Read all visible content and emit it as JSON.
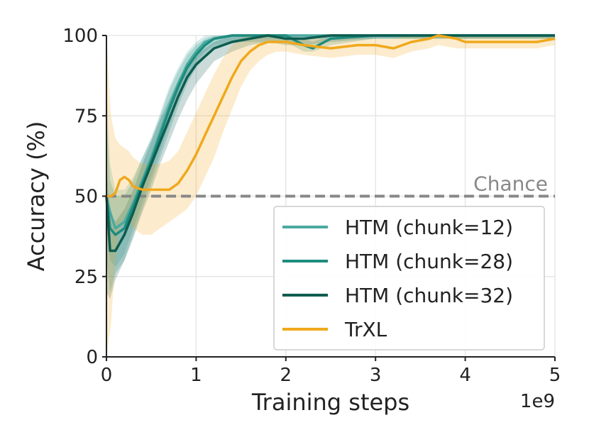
{
  "chart_data": {
    "type": "line",
    "title": "",
    "xlabel": "Training steps",
    "ylabel": "Accuracy (%)",
    "x_scale_label": "1e9",
    "xlim": [
      0,
      5
    ],
    "ylim": [
      0,
      100
    ],
    "x_ticks": [
      "0",
      "1",
      "2",
      "3",
      "4",
      "5"
    ],
    "y_ticks": [
      "0",
      "25",
      "50",
      "75",
      "100"
    ],
    "grid": true,
    "legend_position": "lower-right",
    "reference_line": {
      "label": "Chance",
      "y": 50,
      "style": "dashed",
      "color": "#888888"
    },
    "series": [
      {
        "name": "HTM (chunk=12)",
        "color": "#4aaaa0",
        "x": [
          0.0,
          0.04,
          0.1,
          0.2,
          0.3,
          0.4,
          0.5,
          0.6,
          0.7,
          0.8,
          0.9,
          1.0,
          1.1,
          1.2,
          1.4,
          1.6,
          1.8,
          2.0,
          2.5,
          3.0,
          3.5,
          4.0,
          4.5,
          5.0
        ],
        "y": [
          50,
          45,
          40,
          42,
          48,
          55,
          62,
          70,
          78,
          85,
          91,
          95,
          98,
          99,
          100,
          100,
          100,
          100,
          100,
          100,
          100,
          100,
          100,
          100
        ],
        "lower": [
          40,
          30,
          28,
          32,
          40,
          48,
          56,
          64,
          72,
          80,
          87,
          92,
          95,
          97,
          98,
          99,
          99,
          99,
          99,
          99,
          99,
          99,
          99,
          99
        ],
        "upper": [
          85,
          60,
          52,
          52,
          56,
          62,
          68,
          76,
          84,
          90,
          95,
          98,
          100,
          100,
          100,
          100,
          100,
          100,
          100,
          100,
          100,
          100,
          100,
          100
        ]
      },
      {
        "name": "HTM (chunk=28)",
        "color": "#1e8c7e",
        "x": [
          0.0,
          0.04,
          0.1,
          0.2,
          0.3,
          0.4,
          0.5,
          0.6,
          0.7,
          0.8,
          0.9,
          1.0,
          1.1,
          1.2,
          1.4,
          1.6,
          1.8,
          2.0,
          2.2,
          2.3,
          2.5,
          3.0,
          3.5,
          4.0,
          4.5,
          5.0
        ],
        "y": [
          50,
          40,
          38,
          40,
          47,
          54,
          61,
          69,
          77,
          84,
          90,
          94,
          97,
          99,
          100,
          100,
          100,
          100,
          97,
          96,
          99,
          100,
          100,
          100,
          100,
          100
        ],
        "lower": [
          30,
          20,
          26,
          30,
          38,
          46,
          54,
          62,
          70,
          78,
          85,
          90,
          93,
          96,
          98,
          98,
          98,
          98,
          95,
          95,
          97,
          99,
          99,
          99,
          99,
          99
        ],
        "upper": [
          75,
          55,
          50,
          50,
          55,
          62,
          68,
          75,
          83,
          89,
          94,
          97,
          99,
          100,
          100,
          100,
          100,
          100,
          99,
          98,
          100,
          100,
          100,
          100,
          100,
          100
        ]
      },
      {
        "name": "HTM (chunk=32)",
        "color": "#0d5c50",
        "x": [
          0.0,
          0.04,
          0.1,
          0.2,
          0.3,
          0.4,
          0.5,
          0.6,
          0.7,
          0.8,
          0.9,
          1.0,
          1.2,
          1.4,
          1.6,
          1.8,
          2.0,
          2.2,
          2.5,
          3.0,
          3.5,
          4.0,
          4.5,
          5.0
        ],
        "y": [
          50,
          33,
          33,
          38,
          45,
          53,
          60,
          67,
          74,
          81,
          87,
          91,
          96,
          98,
          99,
          100,
          99,
          99,
          100,
          100,
          100,
          100,
          100,
          100
        ],
        "lower": [
          20,
          18,
          24,
          30,
          37,
          45,
          52,
          60,
          67,
          74,
          80,
          85,
          92,
          95,
          97,
          98,
          97,
          97,
          98,
          99,
          99,
          99,
          99,
          99
        ],
        "upper": [
          60,
          45,
          42,
          46,
          52,
          60,
          67,
          74,
          80,
          86,
          91,
          94,
          98,
          100,
          100,
          100,
          100,
          100,
          100,
          100,
          100,
          100,
          100,
          100
        ]
      },
      {
        "name": "TrXL",
        "color": "#f0a81c",
        "x": [
          0.0,
          0.05,
          0.1,
          0.15,
          0.2,
          0.25,
          0.3,
          0.4,
          0.5,
          0.6,
          0.7,
          0.8,
          0.9,
          1.0,
          1.1,
          1.2,
          1.3,
          1.4,
          1.5,
          1.6,
          1.7,
          1.8,
          1.9,
          2.0,
          2.2,
          2.5,
          2.8,
          3.0,
          3.2,
          3.4,
          3.6,
          3.7,
          3.9,
          4.0,
          4.2,
          4.5,
          4.8,
          5.0
        ],
        "y": [
          50,
          50,
          51,
          55,
          56,
          55,
          53,
          52,
          52,
          52,
          52,
          54,
          58,
          63,
          69,
          75,
          81,
          87,
          92,
          95,
          97,
          98,
          98,
          98,
          97,
          96,
          97,
          97,
          96,
          98,
          99,
          100,
          99,
          98,
          98,
          98,
          98,
          99
        ],
        "lower": [
          0,
          10,
          30,
          40,
          42,
          42,
          40,
          38,
          38,
          40,
          42,
          44,
          46,
          50,
          56,
          62,
          70,
          77,
          84,
          89,
          92,
          94,
          95,
          95,
          94,
          93,
          94,
          94,
          93,
          95,
          96,
          97,
          96,
          96,
          96,
          96,
          96,
          97
        ],
        "upper": [
          100,
          75,
          68,
          66,
          65,
          64,
          62,
          60,
          60,
          60,
          61,
          64,
          70,
          76,
          82,
          88,
          93,
          97,
          99,
          100,
          100,
          100,
          100,
          100,
          99,
          99,
          99,
          99,
          99,
          100,
          100,
          100,
          100,
          100,
          100,
          100,
          100,
          100
        ]
      }
    ]
  }
}
